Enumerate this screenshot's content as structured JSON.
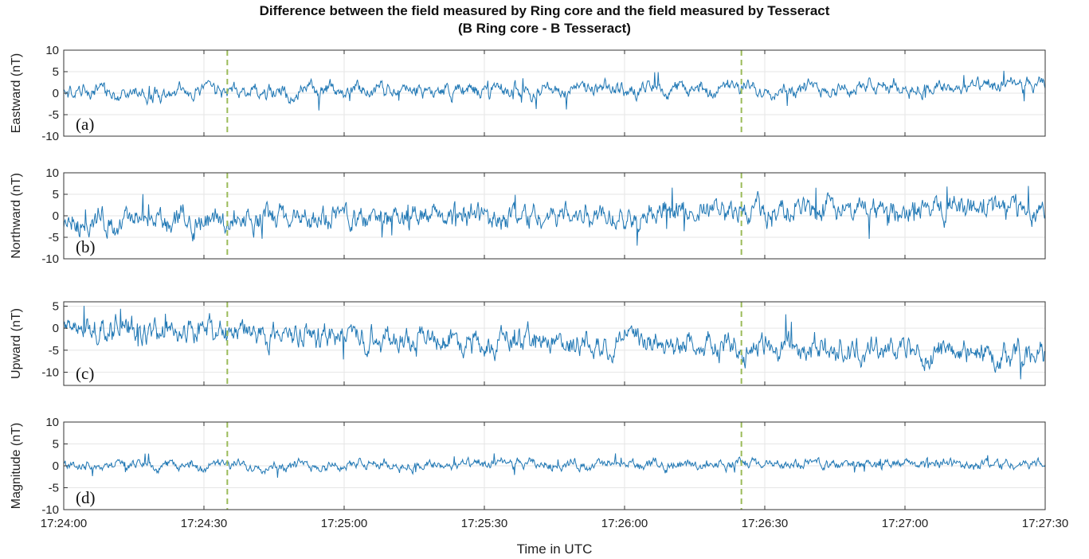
{
  "title": "Difference between the field measured by Ring core and the field measured by Tesseract",
  "subtitle": "(B Ring core - B Tesseract)",
  "chart_data": {
    "type": "line",
    "xlabel": "Time in UTC",
    "x_ticks": [
      "17:24:00",
      "17:24:30",
      "17:25:00",
      "17:25:30",
      "17:26:00",
      "17:26:30",
      "17:27:00",
      "17:27:30"
    ],
    "xlim": [
      "17:24:00",
      "17:27:30"
    ],
    "markers": [
      "17:24:35",
      "17:26:25"
    ],
    "colors": {
      "line": "#1f77b4",
      "marker": "#9bbb59",
      "grid": "#e6e6e6",
      "axis": "#333333"
    },
    "panels": [
      {
        "ylabel": "Eastward (nT)",
        "label": "(a)",
        "ylim": [
          -10,
          10
        ],
        "yticks": [
          10,
          5,
          0,
          -5,
          -10
        ],
        "series": {
          "mean_start": 0,
          "mean_end": 1.5,
          "amplitude": 1.3,
          "peak_max": 6,
          "peak_min": -4.5
        }
      },
      {
        "ylabel": "Northward (nT)",
        "label": "(b)",
        "ylim": [
          -10,
          10
        ],
        "yticks": [
          10,
          5,
          0,
          -5,
          -10
        ],
        "series": {
          "mean_start": -1.5,
          "mean_end": 2,
          "amplitude": 2.2,
          "peak_max": 9,
          "peak_min": -9
        }
      },
      {
        "ylabel": "Upward (nT)",
        "label": "(c)",
        "ylim": [
          -13,
          6
        ],
        "yticks": [
          5,
          0,
          -5,
          -10
        ],
        "series": {
          "mean_start": 0,
          "mean_end": -6,
          "amplitude": 2.2,
          "peak_max": 5.5,
          "peak_min": -12.5
        }
      },
      {
        "ylabel": "Magnitude (nT)",
        "label": "(d)",
        "ylim": [
          -10,
          10
        ],
        "yticks": [
          10,
          5,
          0,
          -5,
          -10
        ],
        "series": {
          "mean_start": 0,
          "mean_end": 0.5,
          "amplitude": 0.9,
          "peak_max": 5.5,
          "peak_min": -4.5
        }
      }
    ]
  }
}
